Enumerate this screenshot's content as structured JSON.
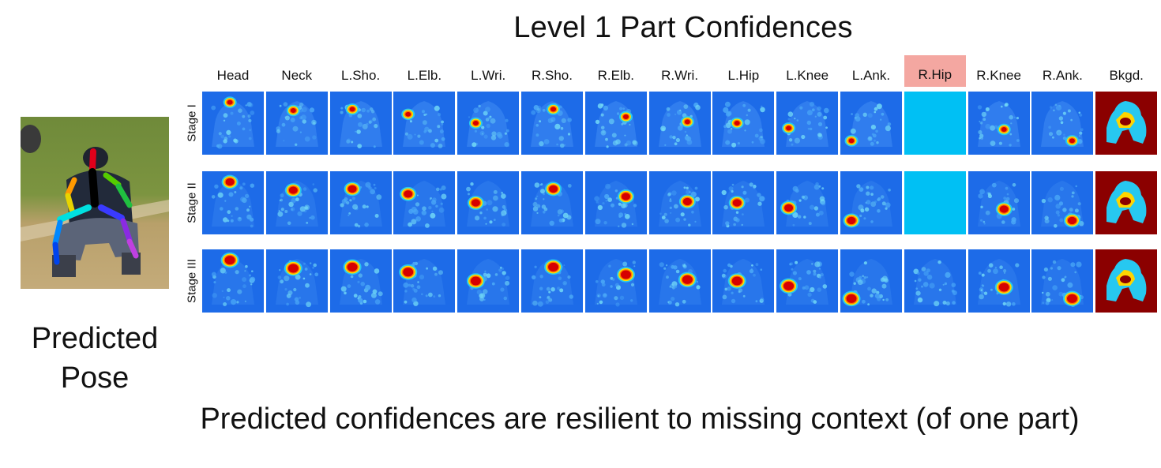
{
  "title": "Level 1 Part Confidences",
  "columns": [
    "Head",
    "Neck",
    "L.Sho.",
    "L.Elb.",
    "L.Wri.",
    "R.Sho.",
    "R.Elb.",
    "R.Wri.",
    "L.Hip",
    "L.Knee",
    "L.Ank.",
    "R.Hip",
    "R.Knee",
    "R.Ank.",
    "Bkgd."
  ],
  "highlighted_column": "R.Hip",
  "stages": [
    "Stage I",
    "Stage II",
    "Stage III"
  ],
  "pose_caption": [
    "Predicted",
    "Pose"
  ],
  "bottom_caption": "Predicted confidences are resilient to missing context (of one part)",
  "colors": {
    "heatmap_low": "#1d6be8",
    "heatmap_mid": "#27c8f0",
    "heatmap_peak": "#d60000",
    "missing_cell": "#00c0f4",
    "background_map": "#8b0000",
    "highlight": "#f4a7a1"
  }
}
